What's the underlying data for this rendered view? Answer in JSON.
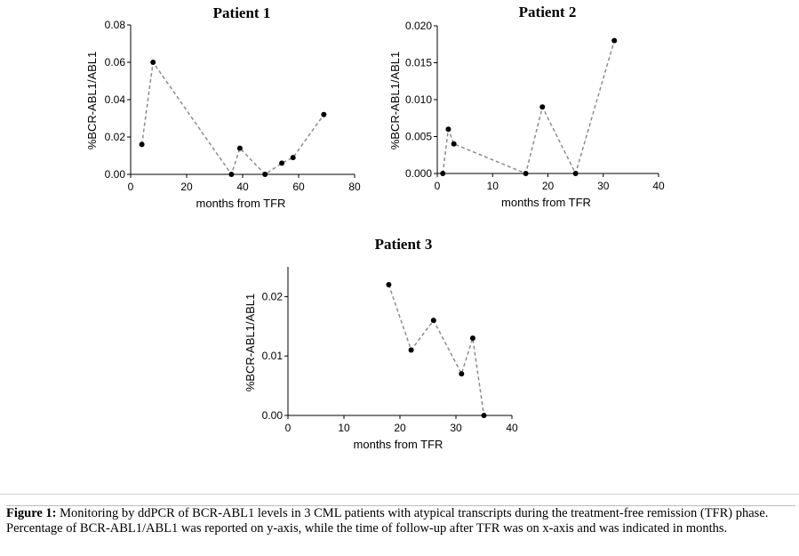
{
  "chart_data": [
    {
      "type": "line",
      "title": "Patient 1",
      "xlabel": "months from TFR",
      "ylabel": "%BCR-ABL1/ABL1",
      "xlim": [
        0,
        80
      ],
      "ylim": [
        0,
        0.08
      ],
      "xticks": [
        "0",
        "20",
        "40",
        "60",
        "80"
      ],
      "yticks": [
        "0.00",
        "0.02",
        "0.04",
        "0.06",
        "0.08"
      ],
      "xtick_values": [
        0,
        20,
        40,
        60,
        80
      ],
      "ytick_values": [
        0,
        0.02,
        0.04,
        0.06,
        0.08
      ],
      "series": [
        {
          "x": [
            4,
            8,
            36,
            39,
            48,
            54,
            58,
            69
          ],
          "y": [
            0.016,
            0.06,
            0.0,
            0.014,
            0.0,
            0.006,
            0.009,
            0.032
          ]
        }
      ]
    },
    {
      "type": "line",
      "title": "Patient 2",
      "xlabel": "months from TFR",
      "ylabel": "%BCR-ABL1/ABL1",
      "xlim": [
        0,
        40
      ],
      "ylim": [
        0,
        0.02
      ],
      "xticks": [
        "0",
        "10",
        "20",
        "30",
        "40"
      ],
      "yticks": [
        "0.000",
        "0.005",
        "0.010",
        "0.015",
        "0.020"
      ],
      "xtick_values": [
        0,
        10,
        20,
        30,
        40
      ],
      "ytick_values": [
        0,
        0.005,
        0.01,
        0.015,
        0.02
      ],
      "series": [
        {
          "x": [
            1,
            2,
            3,
            16,
            19,
            25,
            32
          ],
          "y": [
            0.0,
            0.006,
            0.004,
            0.0,
            0.009,
            0.0,
            0.018
          ]
        }
      ]
    },
    {
      "type": "line",
      "title": "Patient 3",
      "xlabel": "months from TFR",
      "ylabel": "%BCR-ABL1/ABL1",
      "xlim": [
        0,
        40
      ],
      "ylim": [
        0,
        0.025
      ],
      "xticks": [
        "0",
        "10",
        "20",
        "30",
        "40"
      ],
      "yticks": [
        "0.00",
        "0.01",
        "0.02"
      ],
      "xtick_values": [
        0,
        10,
        20,
        30,
        40
      ],
      "ytick_values": [
        0,
        0.01,
        0.02
      ],
      "series": [
        {
          "x": [
            18,
            22,
            26,
            31,
            33,
            35
          ],
          "y": [
            0.022,
            0.011,
            0.016,
            0.007,
            0.013,
            0.0
          ]
        }
      ]
    }
  ],
  "caption": {
    "lead": "Figure 1:",
    "text": " Monitoring by ddPCR of BCR-ABL1 levels in 3 CML patients with atypical transcripts during the treatment-free remission (TFR) phase. Percentage of BCR-ABL1/ABL1 was reported on y-axis, while the time of follow-up after TFR was on x-axis and was indicated in months."
  }
}
